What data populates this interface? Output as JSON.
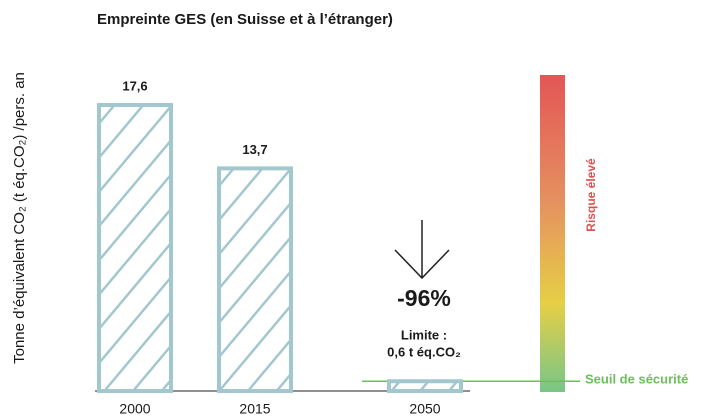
{
  "chart_data": {
    "type": "bar",
    "title": "Empreinte GES (en Suisse et à l’étranger)",
    "y_label": "Tonne d’équivalent CO₂ (t éq.CO₂) /pers. an",
    "categories": [
      "2000",
      "2015",
      "2050"
    ],
    "values": [
      17.6,
      13.7,
      0.6
    ],
    "value_labels": [
      "17,6",
      "13,7",
      "0,6 t éq.CO₂"
    ],
    "color": "#a3c7ce",
    "ylim": [
      0,
      20
    ],
    "threshold": 0.6,
    "annotations": {
      "change": "-96%",
      "limit": "Limite :",
      "risk": "Risque élevé",
      "safety": "Seuil de sécurité"
    }
  }
}
